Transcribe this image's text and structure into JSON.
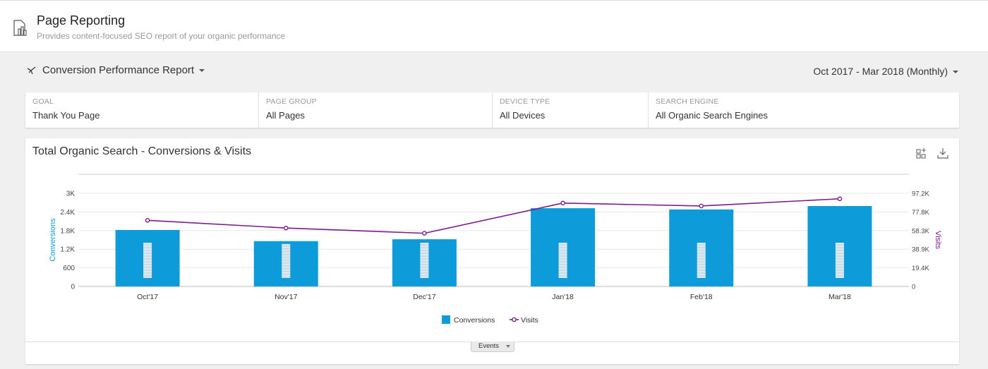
{
  "header": {
    "title": "Page Reporting",
    "subtitle": "Provides content-focused SEO report of your organic performance",
    "icon": "report-page-icon"
  },
  "report": {
    "title": "Conversion Performance Report",
    "icon": "satellite-icon",
    "date_range": "Oct 2017 - Mar 2018 (Monthly)"
  },
  "filters": [
    {
      "label": "GOAL",
      "value": "Thank You Page"
    },
    {
      "label": "PAGE GROUP",
      "value": "All Pages"
    },
    {
      "label": "DEVICE TYPE",
      "value": "All Devices"
    },
    {
      "label": "SEARCH ENGINE",
      "value": "All Organic Search Engines"
    }
  ],
  "chart": {
    "title": "Total Organic Search - Conversions & Visits",
    "tools": [
      "add-widget-icon",
      "download-icon"
    ],
    "events_label": "Events"
  },
  "colors": {
    "conversions": "#0d9bd9",
    "visits": "#7b1d8c",
    "event_marker": "#dbe9f1"
  },
  "chart_data": {
    "type": "bar",
    "title": "Total Organic Search - Conversions & Visits",
    "categories": [
      "Oct'17",
      "Nov'17",
      "Dec'17",
      "Jan'18",
      "Feb'18",
      "Mar'18"
    ],
    "series": [
      {
        "name": "Conversions",
        "type": "bar",
        "axis": "left",
        "values": [
          1820,
          1460,
          1520,
          2520,
          2480,
          2590
        ]
      },
      {
        "name": "Visits",
        "type": "line",
        "axis": "right",
        "values": [
          69000,
          61000,
          55500,
          87000,
          84000,
          91500
        ]
      }
    ],
    "ylabel": "Conversions",
    "y2label": "Visits",
    "ylim": [
      0,
      3000
    ],
    "y2lim": [
      0,
      97200
    ],
    "yticks": [
      "0",
      "600",
      "1.2K",
      "1.8K",
      "2.4K",
      "3K"
    ],
    "y2ticks": [
      "0",
      "19.4K",
      "38.9K",
      "58.3K",
      "77.8K",
      "97.2K"
    ],
    "legend": [
      "Conversions",
      "Visits"
    ],
    "legend_position": "bottom",
    "grid": true
  }
}
